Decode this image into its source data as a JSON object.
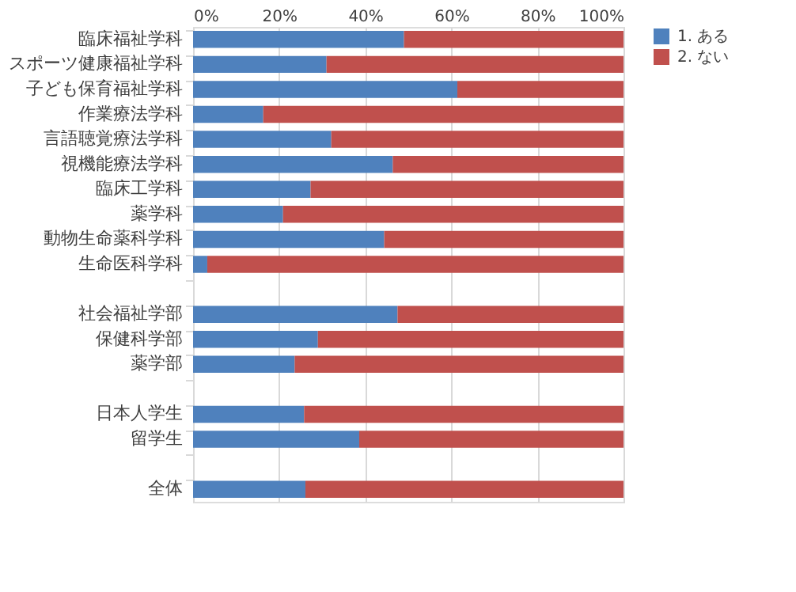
{
  "chart_data": {
    "type": "bar",
    "orientation": "horizontal",
    "stacked": true,
    "categories": [
      "臨床福祉学科",
      "スポーツ健康福祉学科",
      "子ども保育福祉学科",
      "作業療法学科",
      "言語聴覚療法学科",
      "視機能療法学科",
      "臨床工学科",
      "薬学科",
      "動物生命薬科学科",
      "生命医科学科",
      null,
      "社会福祉学部",
      "保健科学部",
      "薬学部",
      null,
      "日本人学生",
      "留学生",
      null,
      "全体"
    ],
    "series": [
      {
        "name": "1. ある",
        "color": "#4f81bd",
        "values": [
          49.0,
          31.0,
          61.4,
          16.3,
          32.1,
          46.4,
          27.3,
          20.9,
          44.4,
          3.3,
          null,
          47.5,
          29.0,
          23.6,
          null,
          25.8,
          38.6,
          null,
          26.1
        ]
      },
      {
        "name": "2. ない",
        "color": "#c0504d",
        "values": [
          51.0,
          69.0,
          38.6,
          83.7,
          67.9,
          53.6,
          72.7,
          79.1,
          55.6,
          96.7,
          null,
          52.5,
          71.0,
          76.4,
          null,
          74.2,
          61.4,
          null,
          73.9
        ]
      }
    ],
    "xlim": [
      0,
      100
    ],
    "xticks": [
      {
        "value": 0,
        "label": "0%"
      },
      {
        "value": 20,
        "label": "20%"
      },
      {
        "value": 40,
        "label": "40%"
      },
      {
        "value": 60,
        "label": "60%"
      },
      {
        "value": 80,
        "label": "80%"
      },
      {
        "value": 100,
        "label": "100%"
      }
    ],
    "grid": "x",
    "legend": "right"
  }
}
